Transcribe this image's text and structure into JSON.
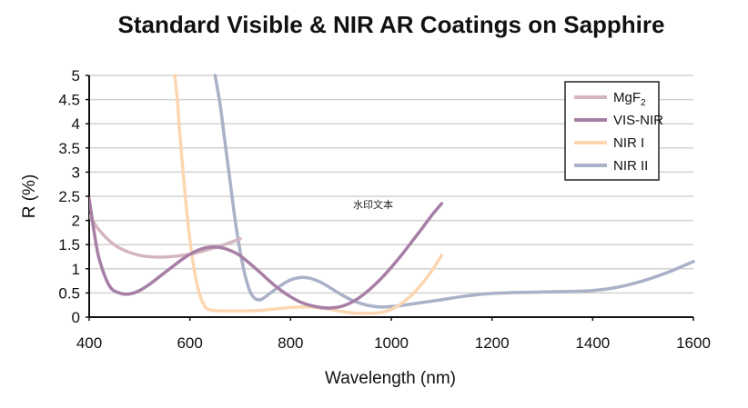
{
  "chart_data": {
    "type": "line",
    "title": "Standard Visible & NIR AR Coatings on Sapphire",
    "xlabel": "Wavelength (nm)",
    "ylabel": "R (%)",
    "xlim": [
      400,
      1600
    ],
    "ylim": [
      0,
      5
    ],
    "x_ticks": [
      "400",
      "600",
      "800",
      "1000",
      "1200",
      "1400",
      "1600"
    ],
    "y_ticks": [
      "0",
      "0.5",
      "1",
      "1.5",
      "2",
      "2.5",
      "3",
      "3.5",
      "4",
      "4.5",
      "5"
    ],
    "grid": "horizontal",
    "legend_position": "top-right",
    "watermark": "水印文本",
    "series": [
      {
        "name": "MgF",
        "name_sub": "2",
        "color": "#d4b5bf",
        "x": [
          400,
          420,
          440,
          460,
          480,
          500,
          520,
          540,
          560,
          580,
          600,
          620,
          640,
          660,
          680,
          700
        ],
        "y": [
          2.1,
          1.8,
          1.58,
          1.43,
          1.34,
          1.28,
          1.25,
          1.24,
          1.25,
          1.27,
          1.3,
          1.35,
          1.41,
          1.47,
          1.54,
          1.62
        ]
      },
      {
        "name": "VIS-NIR",
        "color": "#a77fa6",
        "x": [
          400,
          410,
          420,
          440,
          460,
          480,
          500,
          520,
          540,
          560,
          580,
          600,
          620,
          640,
          660,
          680,
          700,
          720,
          740,
          760,
          780,
          800,
          820,
          840,
          860,
          880,
          900,
          920,
          940,
          960,
          980,
          1000,
          1020,
          1040,
          1060,
          1080,
          1100
        ],
        "y": [
          2.45,
          1.75,
          1.2,
          0.65,
          0.5,
          0.48,
          0.55,
          0.68,
          0.84,
          1.0,
          1.16,
          1.3,
          1.4,
          1.45,
          1.44,
          1.38,
          1.27,
          1.1,
          0.92,
          0.73,
          0.56,
          0.42,
          0.31,
          0.24,
          0.2,
          0.19,
          0.22,
          0.3,
          0.43,
          0.6,
          0.8,
          1.03,
          1.28,
          1.55,
          1.82,
          2.1,
          2.35
        ]
      },
      {
        "name": "NIR I",
        "color": "#fcd6b0",
        "x": [
          570,
          575,
          580,
          590,
          600,
          610,
          620,
          630,
          640,
          660,
          680,
          700,
          720,
          740,
          760,
          780,
          800,
          820,
          840,
          860,
          880,
          900,
          920,
          940,
          960,
          980,
          1000,
          1020,
          1040,
          1060,
          1080,
          1100
        ],
        "y": [
          5.0,
          4.5,
          3.8,
          2.6,
          1.6,
          0.9,
          0.45,
          0.22,
          0.15,
          0.13,
          0.13,
          0.13,
          0.13,
          0.14,
          0.16,
          0.18,
          0.2,
          0.21,
          0.21,
          0.19,
          0.16,
          0.12,
          0.09,
          0.08,
          0.08,
          0.1,
          0.16,
          0.28,
          0.45,
          0.68,
          0.95,
          1.28
        ]
      },
      {
        "name": "NIR II",
        "color": "#aab1c8",
        "x": [
          650,
          660,
          670,
          680,
          690,
          700,
          710,
          720,
          730,
          740,
          750,
          760,
          780,
          800,
          820,
          840,
          860,
          880,
          900,
          920,
          940,
          960,
          980,
          1000,
          1020,
          1040,
          1060,
          1080,
          1100,
          1150,
          1200,
          1250,
          1300,
          1350,
          1400,
          1450,
          1500,
          1550,
          1600
        ],
        "y": [
          5.0,
          4.4,
          3.6,
          2.8,
          2.0,
          1.35,
          0.85,
          0.52,
          0.38,
          0.36,
          0.42,
          0.5,
          0.65,
          0.77,
          0.82,
          0.8,
          0.72,
          0.6,
          0.47,
          0.36,
          0.28,
          0.23,
          0.21,
          0.22,
          0.24,
          0.27,
          0.3,
          0.33,
          0.36,
          0.44,
          0.49,
          0.51,
          0.52,
          0.53,
          0.55,
          0.62,
          0.75,
          0.93,
          1.15
        ]
      }
    ]
  }
}
